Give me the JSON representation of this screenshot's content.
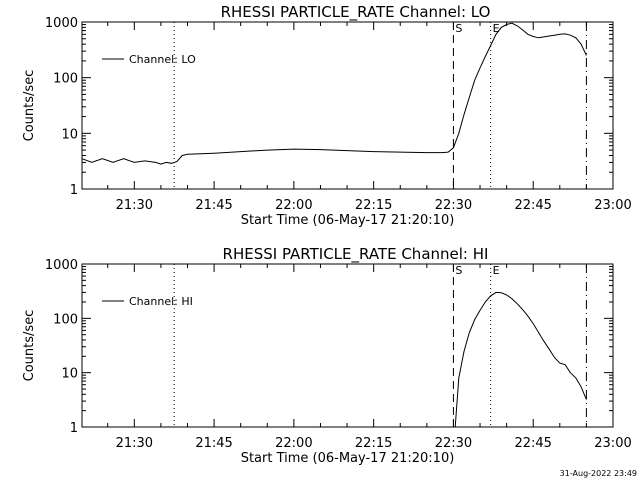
{
  "chart_data": [
    {
      "type": "line",
      "title": "RHESSI PARTICLE_RATE Channel: LO",
      "xlabel": "Start Time (06-May-17 21:20:10)",
      "ylabel": "Counts/sec",
      "yscale": "log",
      "ylim": [
        1,
        1000
      ],
      "xlim": [
        "21:20:10",
        "23:00:00"
      ],
      "grid": false,
      "legend_position": "top-left",
      "x_tick_labels": [
        "21:30",
        "21:45",
        "22:00",
        "22:15",
        "22:30",
        "22:45",
        "23:00"
      ],
      "y_tick_labels": [
        "1",
        "10",
        "100",
        "1000"
      ],
      "series": [
        {
          "name": "Channel: LO",
          "x": [
            "21:20:10",
            "21:22",
            "21:24",
            "21:26",
            "21:28",
            "21:30",
            "21:32",
            "21:34",
            "21:35",
            "21:36",
            "21:37",
            "21:38",
            "21:39",
            "21:40",
            "21:45",
            "21:50",
            "21:55",
            "22:00",
            "22:05",
            "22:10",
            "22:15",
            "22:20",
            "22:25",
            "22:28",
            "22:29",
            "22:30",
            "22:31",
            "22:32",
            "22:33",
            "22:34",
            "22:35",
            "22:36",
            "22:37",
            "22:38",
            "22:39",
            "22:40",
            "22:41",
            "22:42",
            "22:43",
            "22:44",
            "22:45",
            "22:46",
            "22:47",
            "22:48",
            "22:49",
            "22:50",
            "22:51",
            "22:52",
            "22:53",
            "22:54",
            "22:55"
          ],
          "values": [
            3.5,
            3.0,
            3.5,
            3.0,
            3.5,
            3.0,
            3.2,
            3.0,
            2.8,
            3.0,
            2.9,
            3.1,
            4.0,
            4.2,
            4.4,
            4.7,
            5.0,
            5.2,
            5.1,
            4.9,
            4.7,
            4.6,
            4.5,
            4.5,
            4.6,
            5.5,
            10,
            22,
            45,
            90,
            150,
            240,
            380,
            600,
            800,
            900,
            950,
            850,
            720,
            600,
            550,
            520,
            540,
            560,
            580,
            600,
            610,
            580,
            520,
            400,
            250
          ]
        }
      ],
      "annotations": [
        {
          "label": "",
          "time": "21:37:30",
          "style": "dotted"
        },
        {
          "label": "S",
          "time": "22:30:00",
          "style": "dashed"
        },
        {
          "label": "E",
          "time": "22:37:00",
          "style": "dotted"
        },
        {
          "label": "",
          "time": "22:55:00",
          "style": "dash-dot"
        }
      ]
    },
    {
      "type": "line",
      "title": "RHESSI PARTICLE_RATE Channel: HI",
      "xlabel": "Start Time (06-May-17 21:20:10)",
      "ylabel": "Counts/sec",
      "yscale": "log",
      "ylim": [
        1,
        1000
      ],
      "xlim": [
        "21:20:10",
        "23:00:00"
      ],
      "grid": false,
      "legend_position": "top-left",
      "x_tick_labels": [
        "21:30",
        "21:45",
        "22:00",
        "22:15",
        "22:30",
        "22:45",
        "23:00"
      ],
      "y_tick_labels": [
        "1",
        "10",
        "100",
        "1000"
      ],
      "series": [
        {
          "name": "Channel: HI",
          "x": [
            "22:30:20",
            "22:31",
            "22:32",
            "22:33",
            "22:34",
            "22:35",
            "22:36",
            "22:37",
            "22:38",
            "22:39",
            "22:40",
            "22:41",
            "22:42",
            "22:43",
            "22:44",
            "22:45",
            "22:46",
            "22:47",
            "22:48",
            "22:49",
            "22:50",
            "22:51",
            "22:52",
            "22:53",
            "22:54",
            "22:55"
          ],
          "values": [
            1.0,
            8,
            25,
            55,
            95,
            140,
            200,
            260,
            300,
            295,
            270,
            230,
            185,
            145,
            110,
            80,
            55,
            38,
            27,
            19,
            15,
            14,
            10,
            8,
            5.5,
            3.2
          ]
        }
      ],
      "annotations": [
        {
          "label": "",
          "time": "21:37:30",
          "style": "dotted"
        },
        {
          "label": "S",
          "time": "22:30:00",
          "style": "dashed"
        },
        {
          "label": "E",
          "time": "22:37:00",
          "style": "dotted"
        },
        {
          "label": "",
          "time": "22:55:00",
          "style": "dash-dot"
        }
      ]
    }
  ],
  "footer": {
    "timestamp": "31-Aug-2022 23:49"
  }
}
